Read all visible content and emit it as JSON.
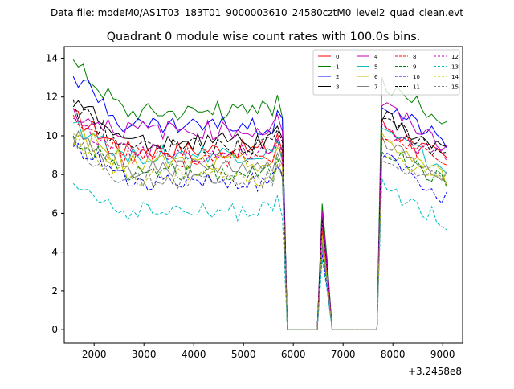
{
  "chart_data": {
    "type": "line",
    "suptitle": "Data file: modeM0/AS1T03_183T01_9000003610_24580cztM0_level2_quad_clean.evt",
    "title": "Quadrant 0 module wise count rates with 100.0s bins.",
    "xlabel": "",
    "ylabel": "",
    "x_offset_label": "+3.2458e8",
    "xlim": [
      1400,
      9400
    ],
    "ylim": [
      -0.7,
      14.6
    ],
    "xticks": [
      2000,
      3000,
      4000,
      5000,
      6000,
      7000,
      8000,
      9000
    ],
    "xtick_labels": [
      "2000",
      "3000",
      "4000",
      "5000",
      "6000",
      "7000",
      "8000",
      "9000"
    ],
    "yticks": [
      0,
      2,
      4,
      6,
      8,
      10,
      12,
      14
    ],
    "ytick_labels": [
      "0",
      "2",
      "4",
      "6",
      "8",
      "10",
      "12",
      "14"
    ],
    "legend_position": "top-right",
    "legend_columns": 4,
    "segment_times": {
      "seg1_start": 1580,
      "seg1_end": 5780,
      "drop": 5880,
      "zero1_end": 6480,
      "peak": 6580,
      "zero2_start": 6780,
      "zero2_end": 7680,
      "seg3_start": 7780,
      "seg3_end": 9080,
      "step": 100
    },
    "series": [
      {
        "name": "0",
        "color": "#ff0000",
        "dash": "solid",
        "start": 11.0,
        "level": 9.3,
        "end_level": 8.7,
        "peak": 5.0
      },
      {
        "name": "1",
        "color": "#008000",
        "dash": "solid",
        "start": 13.8,
        "level": 11.3,
        "end_level": 10.8,
        "peak": 6.5
      },
      {
        "name": "2",
        "color": "#0000ff",
        "dash": "solid",
        "start": 13.2,
        "level": 10.5,
        "end_level": 9.7,
        "peak": 6.0
      },
      {
        "name": "3",
        "color": "#000000",
        "dash": "solid",
        "start": 11.9,
        "level": 9.7,
        "end_level": 9.1,
        "peak": 5.9
      },
      {
        "name": "4",
        "color": "#bf00bf",
        "dash": "solid",
        "start": 11.1,
        "level": 10.3,
        "end_level": 9.4,
        "peak": 6.1
      },
      {
        "name": "5",
        "color": "#00bfbf",
        "dash": "solid",
        "start": 10.6,
        "level": 9.0,
        "end_level": 8.2,
        "peak": 4.3
      },
      {
        "name": "6",
        "color": "#bfbf00",
        "dash": "solid",
        "start": 10.3,
        "level": 8.6,
        "end_level": 7.8,
        "peak": 4.9
      },
      {
        "name": "7",
        "color": "#808080",
        "dash": "solid",
        "start": 10.0,
        "level": 8.3,
        "end_level": 7.9,
        "peak": 4.5
      },
      {
        "name": "8",
        "color": "#ff0000",
        "dash": "dashed",
        "start": 10.8,
        "level": 8.9,
        "end_level": 8.5,
        "peak": 5.3
      },
      {
        "name": "9",
        "color": "#008000",
        "dash": "dashed",
        "start": 10.0,
        "level": 8.1,
        "end_level": 7.6,
        "peak": 4.6
      },
      {
        "name": "10",
        "color": "#0000ff",
        "dash": "dashed",
        "start": 9.7,
        "level": 7.6,
        "end_level": 6.7,
        "peak": 3.9
      },
      {
        "name": "11",
        "color": "#000000",
        "dash": "dashed",
        "start": 11.4,
        "level": 9.5,
        "end_level": 9.0,
        "peak": 5.6
      },
      {
        "name": "12",
        "color": "#bf00bf",
        "dash": "dashed",
        "start": 10.7,
        "level": 9.1,
        "end_level": 8.8,
        "peak": 5.5
      },
      {
        "name": "13",
        "color": "#00bfbf",
        "dash": "dashed",
        "start": 7.6,
        "level": 6.1,
        "end_level": 5.5,
        "peak": 3.6
      },
      {
        "name": "14",
        "color": "#bfbf00",
        "dash": "dashed",
        "start": 9.8,
        "level": 7.9,
        "end_level": 7.7,
        "peak": 4.7
      },
      {
        "name": "15",
        "color": "#808080",
        "dash": "dashed",
        "start": 9.5,
        "level": 7.7,
        "end_level": 7.5,
        "peak": 4.2
      }
    ]
  }
}
